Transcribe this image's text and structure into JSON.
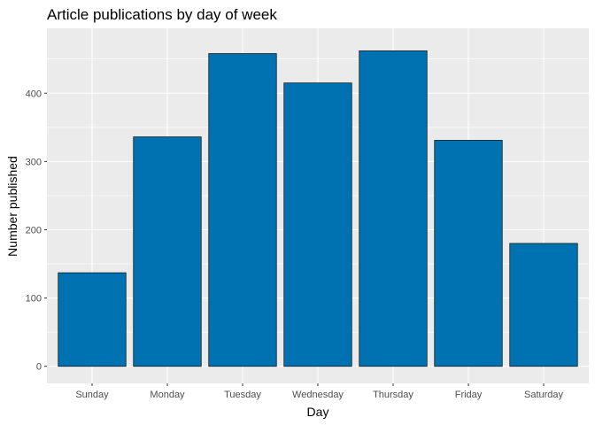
{
  "chart_data": {
    "type": "bar",
    "title": "Article publications by day of week",
    "xlabel": "Day",
    "ylabel": "Number published",
    "categories": [
      "Sunday",
      "Monday",
      "Tuesday",
      "Wednesday",
      "Thursday",
      "Friday",
      "Saturday"
    ],
    "values": [
      137,
      336,
      458,
      415,
      462,
      331,
      180
    ],
    "ylim": [
      -25,
      495
    ],
    "yticks": [
      0,
      100,
      200,
      300,
      400
    ],
    "grid": true,
    "bar_color": "#0072b2",
    "bar_outline": "#1a1a1a",
    "panel_background": "#ebebeb",
    "grid_color": "#ffffff"
  }
}
